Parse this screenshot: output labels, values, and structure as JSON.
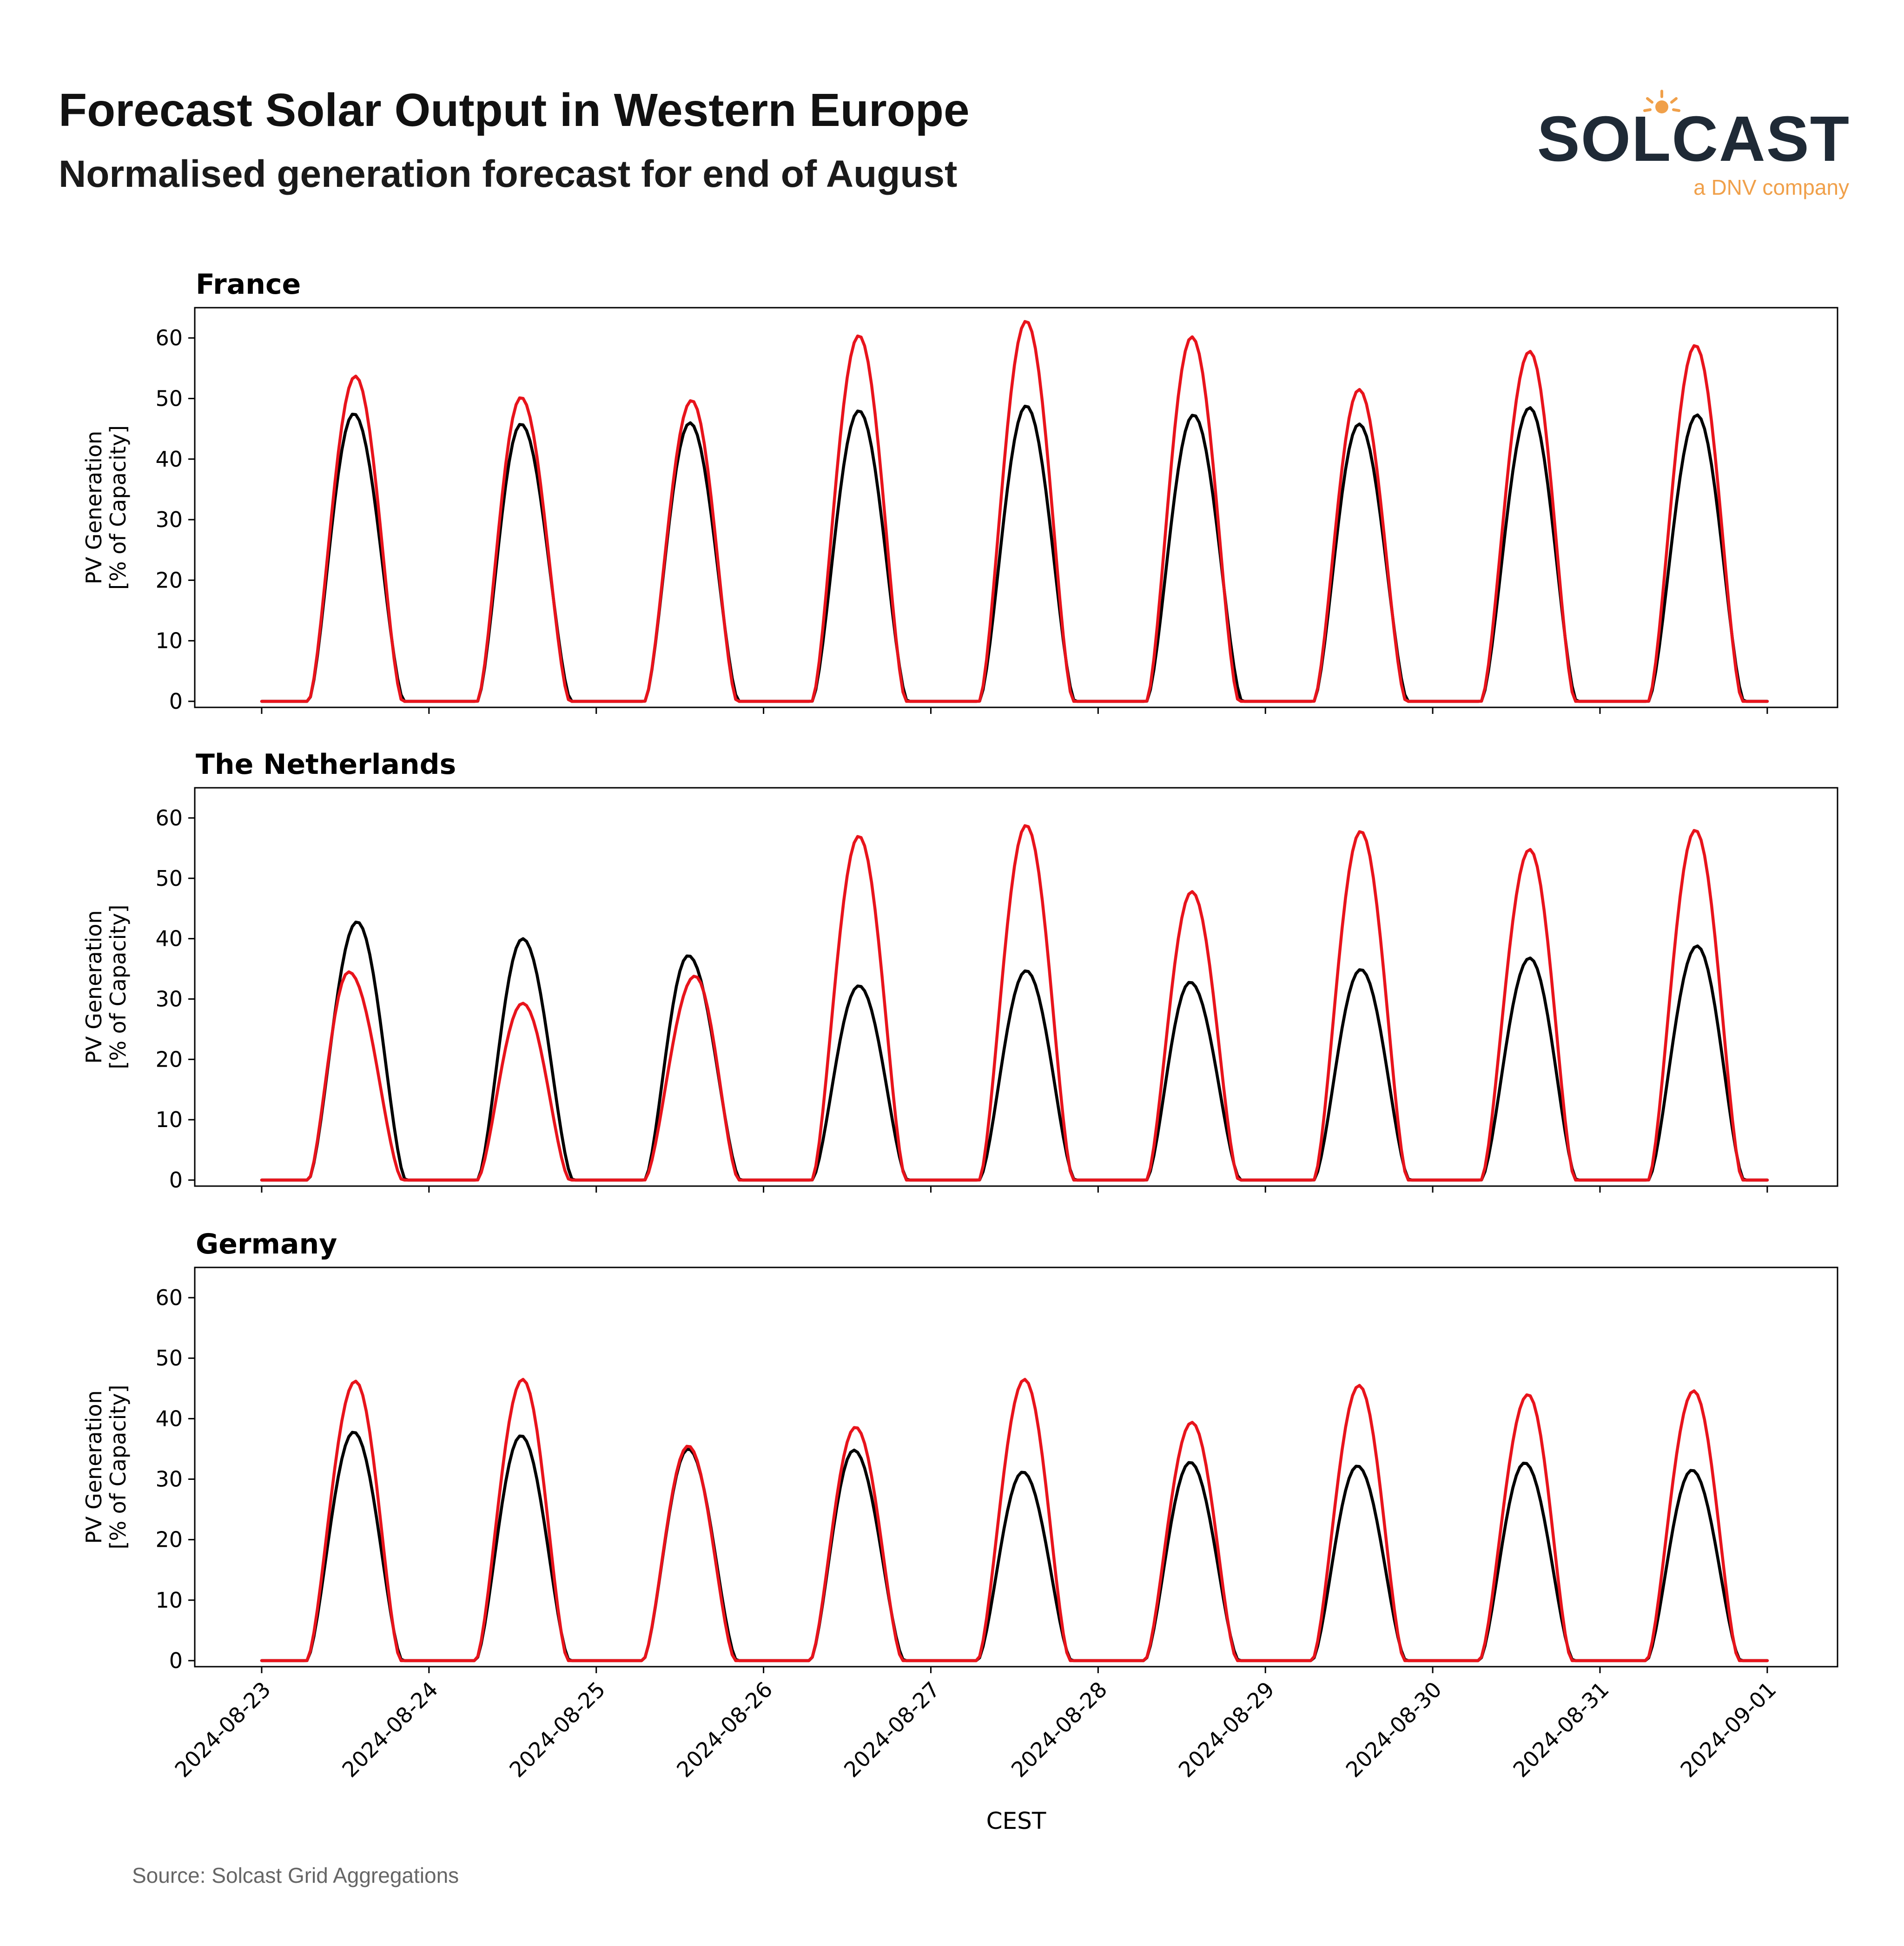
{
  "header": {
    "title": "Forecast Solar Output in Western Europe",
    "subtitle": "Normalised generation forecast for end of August"
  },
  "logo": {
    "wordmark": "SOLCAST",
    "tagline": "a DNV company",
    "accent_color": "#f0a04a",
    "text_color": "#1f2a36"
  },
  "footer": {
    "source": "Source: Solcast Grid Aggregations"
  },
  "chart_data": [
    {
      "type": "line",
      "title": "France",
      "xlabel": "",
      "ylabel": "PV Generation\n[% of Capacity]",
      "ylim": [
        -1,
        65
      ],
      "yticks": [
        0,
        10,
        20,
        30,
        40,
        50,
        60
      ],
      "xlim": [
        -0.4,
        9.42
      ],
      "xticks": [
        0,
        1,
        2,
        3,
        4,
        5,
        6,
        7,
        8,
        9
      ],
      "tick_labels": [
        "2024-08-23",
        "2024-08-24",
        "2024-08-25",
        "2024-08-26",
        "2024-08-27",
        "2024-08-28",
        "2024-08-29",
        "2024-08-30",
        "2024-08-31",
        "2024-09-01"
      ],
      "show_tick_labels": false,
      "series": [
        {
          "name": "black",
          "color": "#000000",
          "days": [
            {
              "start": 0.28,
              "peak_time": 0.55,
              "peak": 47.5,
              "end": 0.85
            },
            {
              "start": 1.29,
              "peak_time": 1.55,
              "peak": 45.8,
              "end": 1.85
            },
            {
              "start": 2.29,
              "peak_time": 2.56,
              "peak": 46.0,
              "end": 2.85
            },
            {
              "start": 3.29,
              "peak_time": 3.57,
              "peak": 48.0,
              "end": 3.86
            },
            {
              "start": 4.29,
              "peak_time": 4.57,
              "peak": 48.8,
              "end": 4.86
            },
            {
              "start": 5.29,
              "peak_time": 5.57,
              "peak": 47.3,
              "end": 5.86
            },
            {
              "start": 6.29,
              "peak_time": 6.56,
              "peak": 45.8,
              "end": 6.85
            },
            {
              "start": 7.29,
              "peak_time": 7.58,
              "peak": 48.5,
              "end": 7.86
            },
            {
              "start": 8.29,
              "peak_time": 8.58,
              "peak": 47.3,
              "end": 8.86
            }
          ]
        },
        {
          "name": "red",
          "color": "#e8141c",
          "days": [
            {
              "start": 0.28,
              "peak_time": 0.56,
              "peak": 53.7,
              "end": 0.84
            },
            {
              "start": 1.29,
              "peak_time": 1.55,
              "peak": 50.2,
              "end": 1.84
            },
            {
              "start": 2.29,
              "peak_time": 2.57,
              "peak": 49.7,
              "end": 2.84
            },
            {
              "start": 3.29,
              "peak_time": 3.57,
              "peak": 60.4,
              "end": 3.85
            },
            {
              "start": 4.29,
              "peak_time": 4.57,
              "peak": 62.8,
              "end": 4.85
            },
            {
              "start": 5.29,
              "peak_time": 5.56,
              "peak": 60.2,
              "end": 5.84
            },
            {
              "start": 6.29,
              "peak_time": 6.56,
              "peak": 51.5,
              "end": 6.84
            },
            {
              "start": 7.29,
              "peak_time": 7.58,
              "peak": 57.8,
              "end": 7.85
            },
            {
              "start": 8.29,
              "peak_time": 8.57,
              "peak": 58.8,
              "end": 8.85
            }
          ]
        }
      ]
    },
    {
      "type": "line",
      "title": "The Netherlands",
      "xlabel": "",
      "ylabel": "PV Generation\n[% of Capacity]",
      "ylim": [
        -1,
        65
      ],
      "yticks": [
        0,
        10,
        20,
        30,
        40,
        50,
        60
      ],
      "xlim": [
        -0.4,
        9.42
      ],
      "xticks": [
        0,
        1,
        2,
        3,
        4,
        5,
        6,
        7,
        8,
        9
      ],
      "tick_labels": [
        "2024-08-23",
        "2024-08-24",
        "2024-08-25",
        "2024-08-26",
        "2024-08-27",
        "2024-08-28",
        "2024-08-29",
        "2024-08-30",
        "2024-08-31",
        "2024-09-01"
      ],
      "show_tick_labels": false,
      "series": [
        {
          "name": "black",
          "color": "#000000",
          "days": [
            {
              "start": 0.28,
              "peak_time": 0.57,
              "peak": 42.8,
              "end": 0.86
            },
            {
              "start": 1.29,
              "peak_time": 1.56,
              "peak": 40.0,
              "end": 1.86
            },
            {
              "start": 2.29,
              "peak_time": 2.55,
              "peak": 37.2,
              "end": 2.86
            },
            {
              "start": 3.29,
              "peak_time": 3.57,
              "peak": 32.2,
              "end": 3.86
            },
            {
              "start": 4.29,
              "peak_time": 4.57,
              "peak": 34.7,
              "end": 4.86
            },
            {
              "start": 5.29,
              "peak_time": 5.55,
              "peak": 32.8,
              "end": 5.85
            },
            {
              "start": 6.29,
              "peak_time": 6.57,
              "peak": 34.9,
              "end": 6.86
            },
            {
              "start": 7.29,
              "peak_time": 7.58,
              "peak": 36.8,
              "end": 7.86
            },
            {
              "start": 8.29,
              "peak_time": 8.58,
              "peak": 38.8,
              "end": 8.86
            }
          ]
        },
        {
          "name": "red",
          "color": "#e8141c",
          "days": [
            {
              "start": 0.28,
              "peak_time": 0.52,
              "peak": 34.5,
              "end": 0.84
            },
            {
              "start": 1.29,
              "peak_time": 1.56,
              "peak": 29.3,
              "end": 1.84
            },
            {
              "start": 2.29,
              "peak_time": 2.59,
              "peak": 33.8,
              "end": 2.85
            },
            {
              "start": 3.29,
              "peak_time": 3.57,
              "peak": 57.0,
              "end": 3.85
            },
            {
              "start": 4.29,
              "peak_time": 4.57,
              "peak": 58.8,
              "end": 4.85
            },
            {
              "start": 5.29,
              "peak_time": 5.56,
              "peak": 47.8,
              "end": 5.84
            },
            {
              "start": 6.29,
              "peak_time": 6.57,
              "peak": 57.8,
              "end": 6.85
            },
            {
              "start": 7.29,
              "peak_time": 7.58,
              "peak": 54.8,
              "end": 7.85
            },
            {
              "start": 8.29,
              "peak_time": 8.57,
              "peak": 58.0,
              "end": 8.85
            }
          ]
        }
      ]
    },
    {
      "type": "line",
      "title": "Germany",
      "xlabel": "CEST",
      "ylabel": "PV Generation\n[% of Capacity]",
      "ylim": [
        -1,
        65
      ],
      "yticks": [
        0,
        10,
        20,
        30,
        40,
        50,
        60
      ],
      "xlim": [
        -0.4,
        9.42
      ],
      "xticks": [
        0,
        1,
        2,
        3,
        4,
        5,
        6,
        7,
        8,
        9
      ],
      "tick_labels": [
        "2024-08-23",
        "2024-08-24",
        "2024-08-25",
        "2024-08-26",
        "2024-08-27",
        "2024-08-28",
        "2024-08-29",
        "2024-08-30",
        "2024-08-31",
        "2024-09-01"
      ],
      "show_tick_labels": true,
      "series": [
        {
          "name": "black",
          "color": "#000000",
          "days": [
            {
              "start": 0.27,
              "peak_time": 0.55,
              "peak": 37.8,
              "end": 0.84
            },
            {
              "start": 1.28,
              "peak_time": 1.55,
              "peak": 37.2,
              "end": 1.84
            },
            {
              "start": 2.28,
              "peak_time": 2.55,
              "peak": 35.0,
              "end": 2.84
            },
            {
              "start": 3.28,
              "peak_time": 3.54,
              "peak": 34.8,
              "end": 3.84
            },
            {
              "start": 4.28,
              "peak_time": 4.55,
              "peak": 31.2,
              "end": 4.84
            },
            {
              "start": 5.28,
              "peak_time": 5.55,
              "peak": 32.8,
              "end": 5.84
            },
            {
              "start": 6.28,
              "peak_time": 6.55,
              "peak": 32.2,
              "end": 6.84
            },
            {
              "start": 7.28,
              "peak_time": 7.55,
              "peak": 32.7,
              "end": 7.84
            },
            {
              "start": 8.28,
              "peak_time": 8.55,
              "peak": 31.5,
              "end": 8.84
            }
          ]
        },
        {
          "name": "red",
          "color": "#e8141c",
          "days": [
            {
              "start": 0.27,
              "peak_time": 0.56,
              "peak": 46.2,
              "end": 0.83
            },
            {
              "start": 1.28,
              "peak_time": 1.56,
              "peak": 46.5,
              "end": 1.83
            },
            {
              "start": 2.28,
              "peak_time": 2.55,
              "peak": 35.5,
              "end": 2.83
            },
            {
              "start": 3.28,
              "peak_time": 3.55,
              "peak": 38.6,
              "end": 3.83
            },
            {
              "start": 4.28,
              "peak_time": 4.56,
              "peak": 46.5,
              "end": 4.83
            },
            {
              "start": 5.28,
              "peak_time": 5.56,
              "peak": 39.4,
              "end": 5.83
            },
            {
              "start": 6.28,
              "peak_time": 6.56,
              "peak": 45.5,
              "end": 6.83
            },
            {
              "start": 7.28,
              "peak_time": 7.57,
              "peak": 44.0,
              "end": 7.83
            },
            {
              "start": 8.28,
              "peak_time": 8.56,
              "peak": 44.6,
              "end": 8.83
            }
          ]
        }
      ]
    }
  ]
}
